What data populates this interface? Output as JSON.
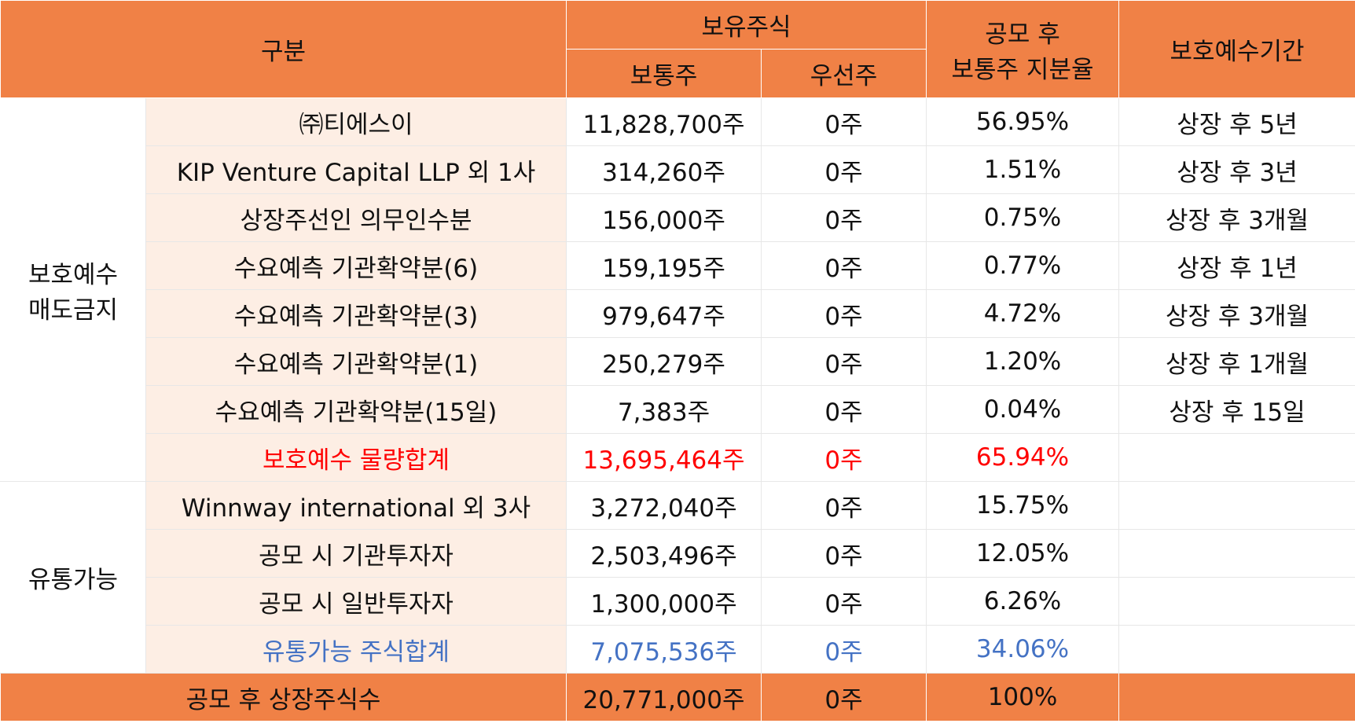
{
  "header": {
    "category": "구분",
    "holdings": "보유주식",
    "common": "보통주",
    "preferred": "우선주",
    "ratio_line1": "공모 후",
    "ratio_line2": "보통주 지분율",
    "lockup": "보호예수기간"
  },
  "groups": {
    "locked_line1": "보호예수",
    "locked_line2": "매도금지",
    "tradable": "유통가능"
  },
  "locked_rows": [
    {
      "holder": "㈜티에스이",
      "common": "11,828,700주",
      "preferred": "0주",
      "ratio": "56.95%",
      "period": "상장 후 5년"
    },
    {
      "holder": "KIP Venture Capital LLP 외 1사",
      "common": "314,260주",
      "preferred": "0주",
      "ratio": "1.51%",
      "period": "상장 후 3년"
    },
    {
      "holder": "상장주선인 의무인수분",
      "common": "156,000주",
      "preferred": "0주",
      "ratio": "0.75%",
      "period": "상장 후 3개월"
    },
    {
      "holder": "수요예측 기관확약분(6)",
      "common": "159,195주",
      "preferred": "0주",
      "ratio": "0.77%",
      "period": "상장 후 1년"
    },
    {
      "holder": "수요예측 기관확약분(3)",
      "common": "979,647주",
      "preferred": "0주",
      "ratio": "4.72%",
      "period": "상장 후 3개월"
    },
    {
      "holder": "수요예측 기관확약분(1)",
      "common": "250,279주",
      "preferred": "0주",
      "ratio": "1.20%",
      "period": "상장 후 1개월"
    },
    {
      "holder": "수요예측 기관확약분(15일)",
      "common": "7,383주",
      "preferred": "0주",
      "ratio": "0.04%",
      "period": "상장 후 15일"
    }
  ],
  "locked_total": {
    "holder": "보호예수 물량합계",
    "common": "13,695,464주",
    "preferred": "0주",
    "ratio": "65.94%",
    "period": ""
  },
  "tradable_rows": [
    {
      "holder": "Winnway international 외 3사",
      "common": "3,272,040주",
      "preferred": "0주",
      "ratio": "15.75%",
      "period": ""
    },
    {
      "holder": "공모 시 기관투자자",
      "common": "2,503,496주",
      "preferred": "0주",
      "ratio": "12.05%",
      "period": ""
    },
    {
      "holder": "공모 시 일반투자자",
      "common": "1,300,000주",
      "preferred": "0주",
      "ratio": "6.26%",
      "period": ""
    }
  ],
  "tradable_total": {
    "holder": "유통가능 주식합계",
    "common": "7,075,536주",
    "preferred": "0주",
    "ratio": "34.06%",
    "period": ""
  },
  "grand_total": {
    "label": "공모 후 상장주식수",
    "common": "20,771,000주",
    "preferred": "0주",
    "ratio": "100%",
    "period": ""
  },
  "colors": {
    "header_bg": "#f08146",
    "row_bg": "#fdeee4",
    "locked_total_text": "#ff0000",
    "tradable_total_text": "#4472c4"
  }
}
